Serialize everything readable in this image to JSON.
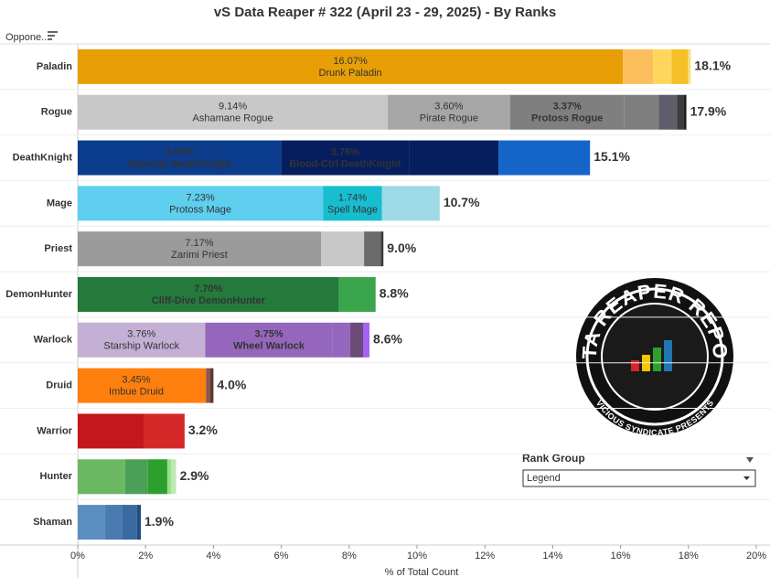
{
  "header": {
    "filter_label": "Oppone.."
  },
  "chart_data": {
    "type": "stacked-bar-horizontal",
    "title": "vS Data Reaper #  322 (April 23 - 29, 2025) - By Ranks",
    "x_label": "% of Total Count",
    "xlim": [
      0,
      20
    ],
    "xticks": [
      {
        "value": 0,
        "label": "0%"
      },
      {
        "value": 2,
        "label": "2%"
      },
      {
        "value": 4,
        "label": "4%"
      },
      {
        "value": 6,
        "label": "6%"
      },
      {
        "value": 8,
        "label": "8%"
      },
      {
        "value": 10,
        "label": "10%"
      },
      {
        "value": 12,
        "label": "12%"
      },
      {
        "value": 14,
        "label": "14%"
      },
      {
        "value": 16,
        "label": "16%"
      },
      {
        "value": 18,
        "label": "18%"
      },
      {
        "value": 20,
        "label": "20%"
      }
    ],
    "categories": [
      "Paladin",
      "Rogue",
      "DeathKnight",
      "Mage",
      "Priest",
      "DemonHunter",
      "Warlock",
      "Druid",
      "Warrior",
      "Hunter",
      "Shaman"
    ],
    "total_labels": [
      "18.1%",
      "17.9%",
      "15.1%",
      "10.7%",
      "9.0%",
      "8.8%",
      "8.6%",
      "4.0%",
      "3.2%",
      "2.9%",
      "1.9%"
    ],
    "bars": [
      {
        "segments": [
          {
            "value": 16.07,
            "value_label": "16.07%",
            "name": "Drunk Paladin",
            "color": "#e89e05"
          },
          {
            "value": 0.89,
            "color": "#fdbf5d"
          },
          {
            "value": 0.54,
            "color": "#ffd65c"
          },
          {
            "value": 0.49,
            "color": "#f5c027"
          },
          {
            "value": 0.08,
            "color": "#f7e08b"
          }
        ]
      },
      {
        "segments": [
          {
            "value": 9.14,
            "value_label": "9.14%",
            "name": "Ashamane Rogue",
            "color": "#c8c8c8"
          },
          {
            "value": 3.6,
            "value_label": "3.60%",
            "name": "Pirate Rogue",
            "color": "#a6a6a6"
          },
          {
            "value": 3.37,
            "value_label": "3.37%",
            "name": "Protoss Rogue",
            "color": "#7f7f7f"
          },
          {
            "value": 1.02,
            "color": "#7f7f7f"
          },
          {
            "value": 0.54,
            "color": "#5e5e6a"
          },
          {
            "value": 0.19,
            "color": "#3c3c3c"
          },
          {
            "value": 0.08,
            "color": "#1f1f1f"
          }
        ]
      },
      {
        "segments": [
          {
            "value": 6.0,
            "value_label": "6.00%",
            "name": "Starship DeathKnight",
            "color": "#0c3c8c"
          },
          {
            "value": 3.76,
            "value_label": "3.76%",
            "name": "Blood-Ctrl DeathKnight",
            "color": "#061e5e"
          },
          {
            "value": 2.64,
            "color": "#061e5e"
          },
          {
            "value": 2.7,
            "color": "#1565c8"
          }
        ]
      },
      {
        "segments": [
          {
            "value": 7.23,
            "value_label": "7.23%",
            "name": "Protoss Mage",
            "color": "#5fcfef"
          },
          {
            "value": 1.74,
            "value_label": "1.74%",
            "name": "Spell Mage",
            "color": "#17becf"
          },
          {
            "value": 1.7,
            "color": "#9edae5"
          }
        ]
      },
      {
        "segments": [
          {
            "value": 7.17,
            "value_label": "7.17%",
            "name": "Zarimi Priest",
            "color": "#9b9b9b"
          },
          {
            "value": 1.27,
            "color": "#c8c8c8"
          },
          {
            "value": 0.49,
            "color": "#6b6b6b"
          },
          {
            "value": 0.08,
            "color": "#3c3c3c"
          }
        ]
      },
      {
        "segments": [
          {
            "value": 7.7,
            "value_label": "7.70%",
            "name": "Cliff-Dive DemonHunter",
            "color": "#237a3b"
          },
          {
            "value": 1.08,
            "color": "#3aa54a"
          }
        ]
      },
      {
        "segments": [
          {
            "value": 3.76,
            "value_label": "3.76%",
            "name": "Starship Warlock",
            "color": "#c5b0d5"
          },
          {
            "value": 3.75,
            "value_label": "3.75%",
            "name": "Wheel Warlock",
            "color": "#9467bd"
          },
          {
            "value": 0.52,
            "color": "#9467bd"
          },
          {
            "value": 0.38,
            "color": "#6b4b78"
          },
          {
            "value": 0.19,
            "color": "#a463f2"
          }
        ]
      },
      {
        "segments": [
          {
            "value": 3.45,
            "value_label": "3.45%",
            "name": "Imbue Druid",
            "color": "#ff7f0e"
          },
          {
            "value": 0.33,
            "color": "#ff7f0e"
          },
          {
            "value": 0.12,
            "color": "#8c564b"
          },
          {
            "value": 0.1,
            "color": "#5a3a30"
          }
        ]
      },
      {
        "segments": [
          {
            "value": 1.94,
            "color": "#c4161c"
          },
          {
            "value": 1.21,
            "color": "#d62728"
          }
        ]
      },
      {
        "segments": [
          {
            "value": 1.4,
            "color": "#6cb862"
          },
          {
            "value": 0.67,
            "color": "#4ba057"
          },
          {
            "value": 0.57,
            "color": "#2ca02c"
          },
          {
            "value": 0.11,
            "color": "#98df8a"
          },
          {
            "value": 0.15,
            "color": "#bfe9b1"
          }
        ]
      },
      {
        "segments": [
          {
            "value": 0.81,
            "color": "#5b8fc0"
          },
          {
            "value": 0.51,
            "color": "#4a7aaf"
          },
          {
            "value": 0.43,
            "color": "#3a6a9f"
          },
          {
            "value": 0.11,
            "color": "#1f4e7f"
          }
        ]
      }
    ]
  },
  "filter": {
    "title": "Rank Group",
    "selected": "Legend"
  },
  "logo": {
    "title": "DATA REAPER REPORT",
    "subtitle": "VICIOUS SYNDICATE PRESENTS"
  }
}
